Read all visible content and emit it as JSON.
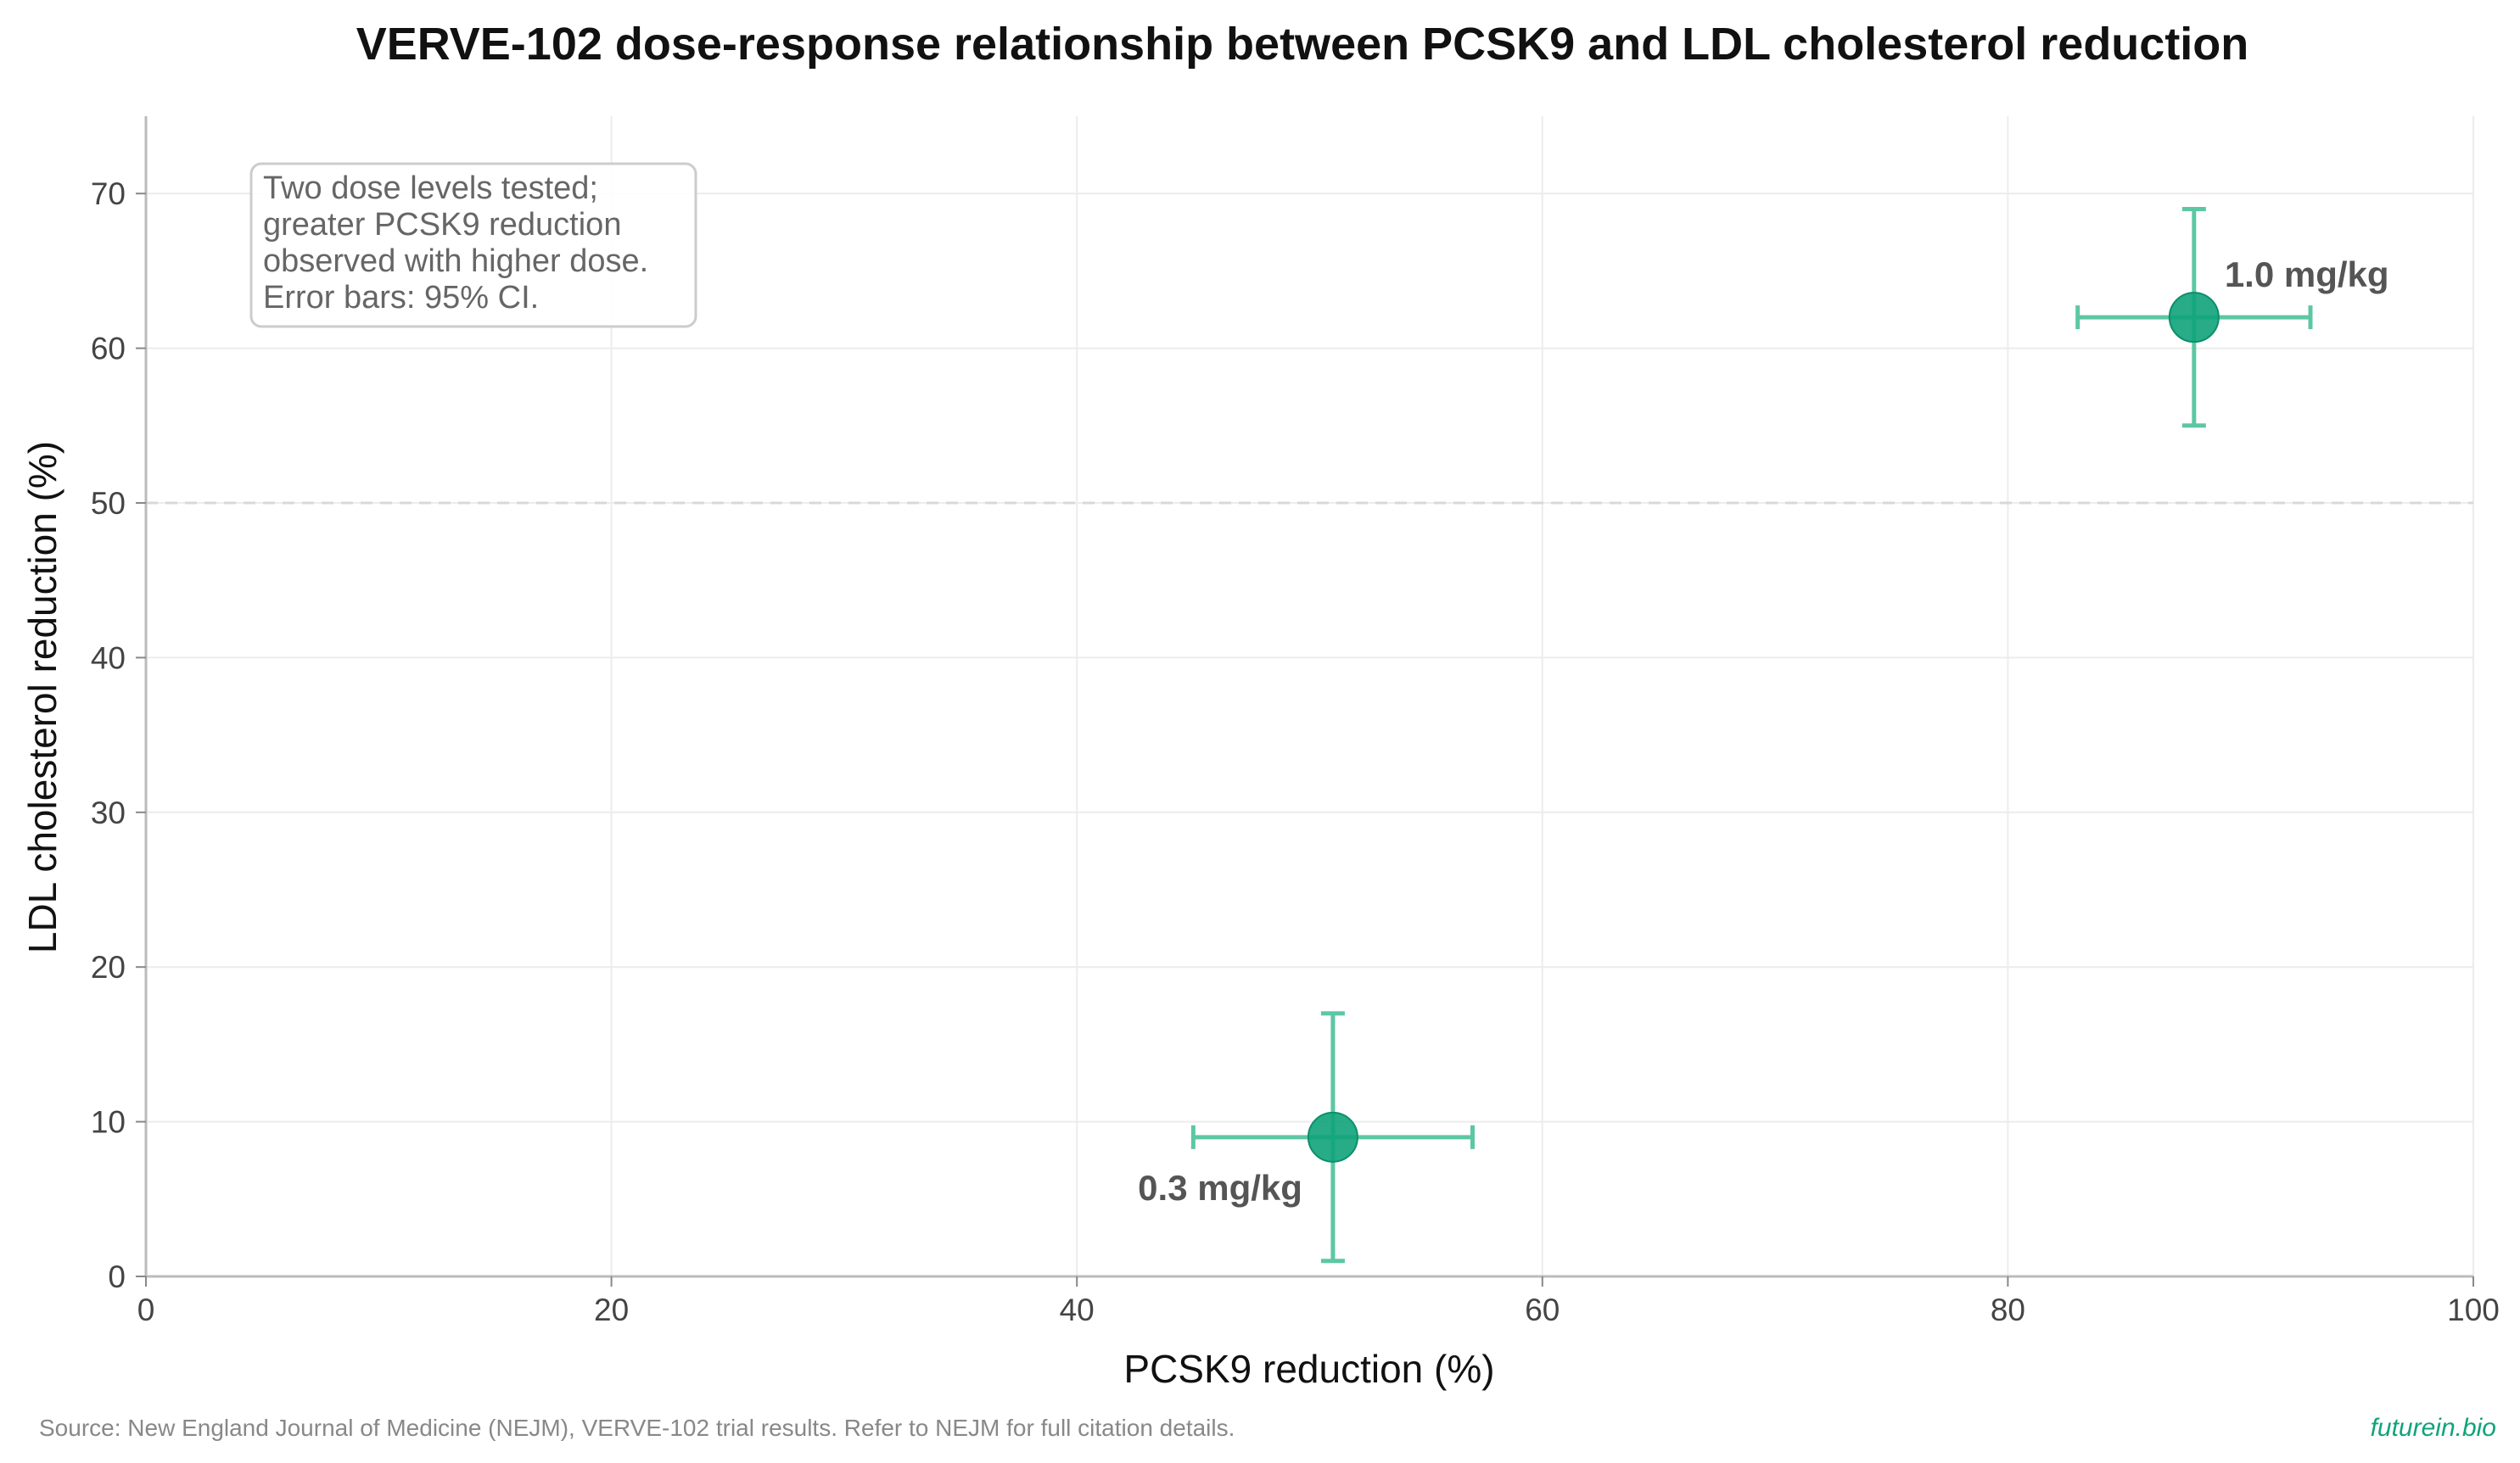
{
  "chart_data": {
    "type": "scatter",
    "title": "VERVE-102 dose-response relationship between PCSK9 and LDL cholesterol reduction",
    "xlabel": "PCSK9 reduction (%)",
    "ylabel": "LDL cholesterol reduction (%)",
    "xlim": [
      0,
      100
    ],
    "ylim": [
      0,
      75
    ],
    "xticks": [
      0,
      20,
      40,
      60,
      80,
      100
    ],
    "yticks": [
      0,
      10,
      20,
      30,
      40,
      50,
      60,
      70
    ],
    "grid": true,
    "reference_line": {
      "axis": "y",
      "value": 50,
      "style": "dashed"
    },
    "points": [
      {
        "label": "0.3 mg/kg",
        "x": 51,
        "y": 9,
        "x_ci": [
          45,
          57
        ],
        "y_ci": [
          1,
          17
        ],
        "label_position": "bottom-left"
      },
      {
        "label": "1.0 mg/kg",
        "x": 88,
        "y": 62,
        "x_ci": [
          83,
          93
        ],
        "y_ci": [
          55,
          69
        ],
        "label_position": "top-right"
      }
    ],
    "annotation": [
      "Two dose levels tested;",
      "greater PCSK9 reduction",
      "observed with higher dose.",
      "Error bars: 95% CI."
    ],
    "colors": {
      "marker": "#10a37a",
      "errorbar": "#5cc7a4",
      "grid": "#ececec",
      "reference": "#d8d8d8"
    }
  },
  "footer": {
    "source": "Source: New England Journal of Medicine (NEJM), VERVE-102 trial results. Refer to NEJM for full citation details.",
    "brand": "futurein.bio"
  }
}
